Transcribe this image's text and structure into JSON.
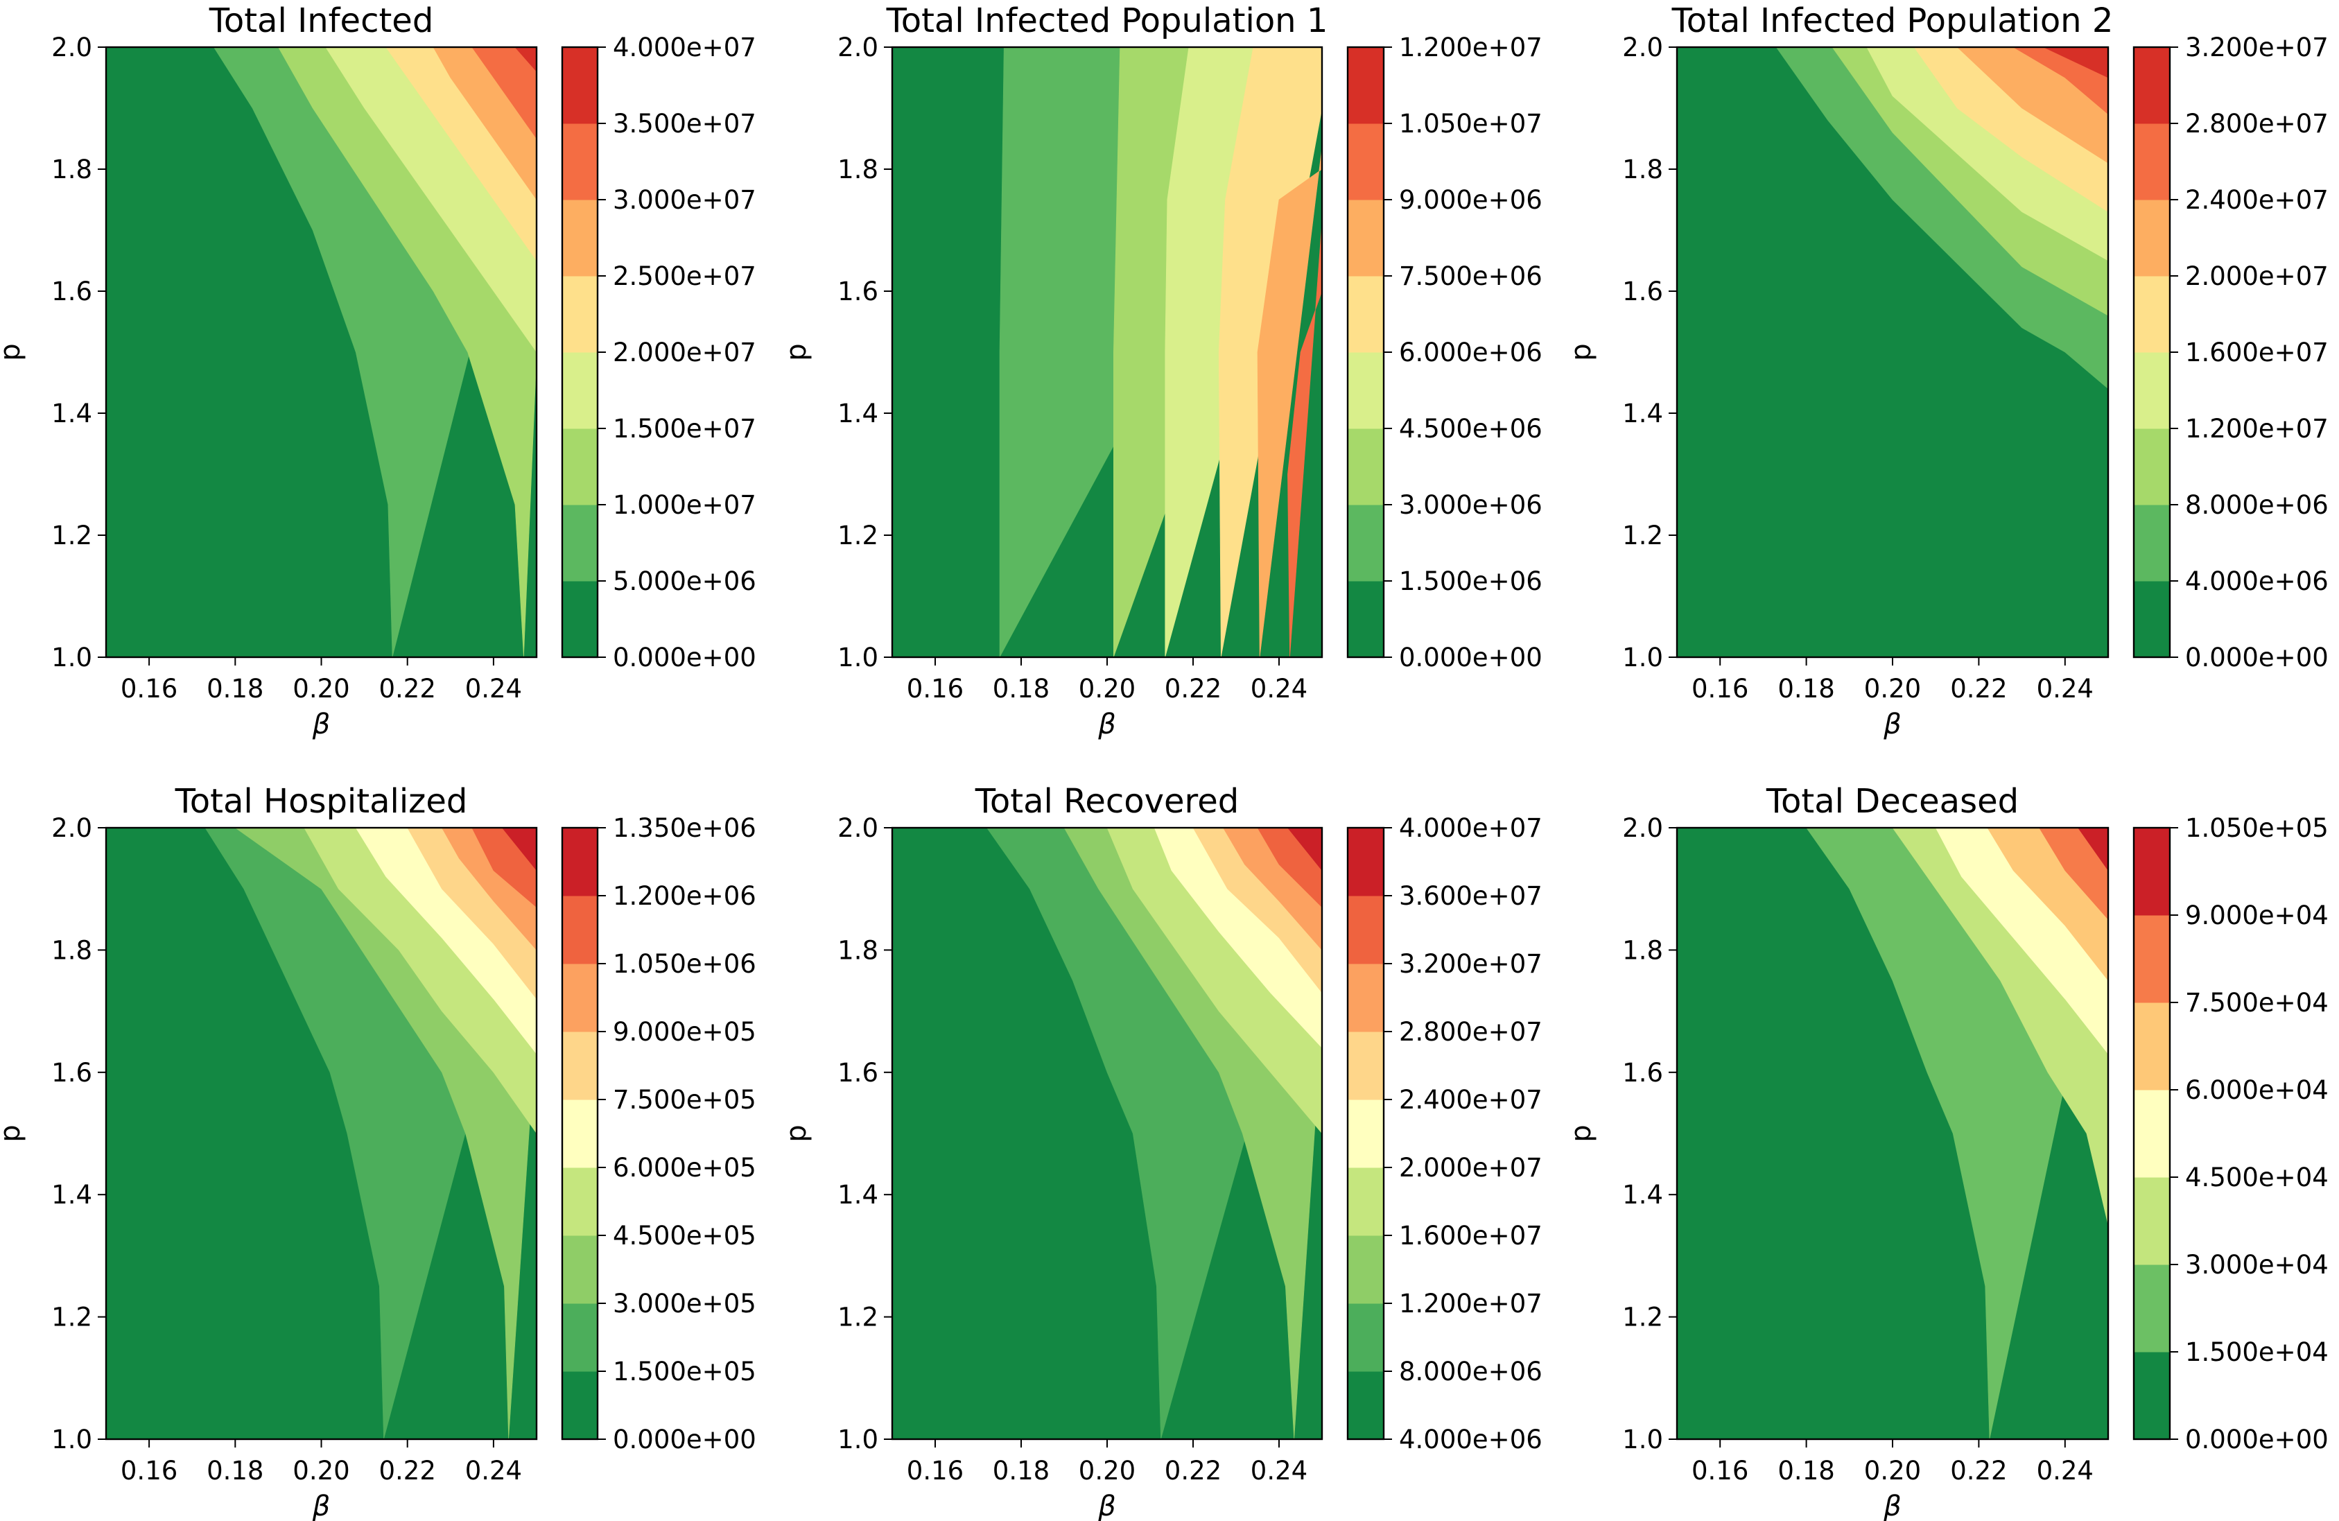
{
  "figure": {
    "background": "#ffffff"
  },
  "chart_data": [
    {
      "type": "contour",
      "title": "Total Infected",
      "xlabel": "β",
      "ylabel": "p",
      "xlim": [
        0.15,
        0.25
      ],
      "ylim": [
        1.0,
        2.0
      ],
      "xticks": [
        "0.16",
        "0.18",
        "0.20",
        "0.22",
        "0.24"
      ],
      "yticks": [
        "1.0",
        "1.2",
        "1.4",
        "1.6",
        "1.8",
        "2.0"
      ],
      "colorbar": {
        "levels": [
          0,
          5000000,
          10000000,
          15000000,
          20000000,
          25000000,
          30000000,
          35000000,
          40000000
        ],
        "tick_labels": [
          "0.000e+00",
          "5.000e+06",
          "1.000e+07",
          "1.500e+07",
          "2.000e+07",
          "2.500e+07",
          "3.000e+07",
          "3.500e+07",
          "4.000e+07"
        ],
        "colors": [
          "#138843",
          "#5cb860",
          "#a6d96a",
          "#d9ef8b",
          "#fee08b",
          "#fdae61",
          "#f46d43",
          "#d73027"
        ]
      },
      "boundaries": [
        [
          [
            0.2165,
            1.0
          ],
          [
            0.2155,
            1.25
          ],
          [
            0.208,
            1.5
          ],
          [
            0.198,
            1.7
          ],
          [
            0.184,
            1.9
          ],
          [
            0.175,
            2.0
          ]
        ],
        [
          [
            0.247,
            1.0
          ],
          [
            0.245,
            1.25
          ],
          [
            0.234,
            1.5
          ],
          [
            0.226,
            1.6
          ],
          [
            0.212,
            1.75
          ],
          [
            0.198,
            1.9
          ],
          [
            0.19,
            2.0
          ]
        ],
        [
          [
            0.25,
            1.5
          ],
          [
            0.24,
            1.6
          ],
          [
            0.23,
            1.7
          ],
          [
            0.22,
            1.8
          ],
          [
            0.21,
            1.9
          ],
          [
            0.201,
            2.0
          ]
        ],
        [
          [
            0.25,
            1.65
          ],
          [
            0.24,
            1.75
          ],
          [
            0.23,
            1.85
          ],
          [
            0.22,
            1.95
          ],
          [
            0.215,
            2.0
          ]
        ],
        [
          [
            0.25,
            1.75
          ],
          [
            0.24,
            1.85
          ],
          [
            0.23,
            1.95
          ],
          [
            0.226,
            2.0
          ]
        ],
        [
          [
            0.25,
            1.85
          ],
          [
            0.245,
            1.9
          ],
          [
            0.24,
            1.95
          ],
          [
            0.235,
            2.0
          ]
        ],
        [
          [
            0.25,
            1.96
          ],
          [
            0.245,
            2.0
          ]
        ]
      ]
    },
    {
      "type": "contour",
      "title": "Total Infected Population 1",
      "xlabel": "β",
      "ylabel": "p",
      "xlim": [
        0.15,
        0.25
      ],
      "ylim": [
        1.0,
        2.0
      ],
      "xticks": [
        "0.16",
        "0.18",
        "0.20",
        "0.22",
        "0.24"
      ],
      "yticks": [
        "1.0",
        "1.2",
        "1.4",
        "1.6",
        "1.8",
        "2.0"
      ],
      "colorbar": {
        "levels": [
          0,
          1500000,
          3000000,
          4500000,
          6000000,
          7500000,
          9000000,
          10500000,
          12000000
        ],
        "tick_labels": [
          "0.000e+00",
          "1.500e+06",
          "3.000e+06",
          "4.500e+06",
          "6.000e+06",
          "7.500e+06",
          "9.000e+06",
          "1.050e+07",
          "1.200e+07"
        ],
        "colors": [
          "#138843",
          "#5cb860",
          "#a6d96a",
          "#d9ef8b",
          "#fee08b",
          "#fdae61",
          "#f46d43",
          "#d73027"
        ]
      },
      "boundaries": [
        [
          [
            0.175,
            1.0
          ],
          [
            0.175,
            1.5
          ],
          [
            0.176,
            2.0
          ]
        ],
        [
          [
            0.2015,
            1.0
          ],
          [
            0.2015,
            1.5
          ],
          [
            0.203,
            2.0
          ]
        ],
        [
          [
            0.2135,
            1.0
          ],
          [
            0.2135,
            1.5
          ],
          [
            0.214,
            1.75
          ],
          [
            0.219,
            2.0
          ]
        ],
        [
          [
            0.2265,
            1.0
          ],
          [
            0.226,
            1.5
          ],
          [
            0.2275,
            1.75
          ],
          [
            0.234,
            2.0
          ]
        ],
        [
          [
            0.2355,
            1.0
          ],
          [
            0.235,
            1.5
          ],
          [
            0.24,
            1.75
          ],
          [
            0.25,
            1.8
          ]
        ],
        [
          [
            0.2425,
            1.0
          ],
          [
            0.242,
            1.3
          ],
          [
            0.245,
            1.5
          ],
          [
            0.25,
            1.6
          ]
        ]
      ]
    },
    {
      "type": "contour",
      "title": "Total Infected Population 2",
      "xlabel": "β",
      "ylabel": "p",
      "xlim": [
        0.15,
        0.25
      ],
      "ylim": [
        1.0,
        2.0
      ],
      "xticks": [
        "0.16",
        "0.18",
        "0.20",
        "0.22",
        "0.24"
      ],
      "yticks": [
        "1.0",
        "1.2",
        "1.4",
        "1.6",
        "1.8",
        "2.0"
      ],
      "colorbar": {
        "levels": [
          0,
          4000000,
          8000000,
          12000000,
          16000000,
          20000000,
          24000000,
          28000000,
          32000000
        ],
        "tick_labels": [
          "0.000e+00",
          "4.000e+06",
          "8.000e+06",
          "1.200e+07",
          "1.600e+07",
          "2.000e+07",
          "2.400e+07",
          "2.800e+07",
          "3.200e+07"
        ],
        "colors": [
          "#138843",
          "#5cb860",
          "#a6d96a",
          "#d9ef8b",
          "#fee08b",
          "#fdae61",
          "#f46d43",
          "#d73027"
        ]
      },
      "boundaries": [
        [
          [
            0.25,
            1.44
          ],
          [
            0.24,
            1.5
          ],
          [
            0.23,
            1.54
          ],
          [
            0.2,
            1.75
          ],
          [
            0.185,
            1.88
          ],
          [
            0.173,
            2.0
          ]
        ],
        [
          [
            0.25,
            1.56
          ],
          [
            0.23,
            1.64
          ],
          [
            0.2,
            1.86
          ],
          [
            0.186,
            2.0
          ]
        ],
        [
          [
            0.25,
            1.65
          ],
          [
            0.23,
            1.73
          ],
          [
            0.2,
            1.92
          ],
          [
            0.194,
            2.0
          ]
        ],
        [
          [
            0.25,
            1.73
          ],
          [
            0.23,
            1.82
          ],
          [
            0.215,
            1.9
          ],
          [
            0.205,
            2.0
          ]
        ],
        [
          [
            0.25,
            1.81
          ],
          [
            0.23,
            1.9
          ],
          [
            0.215,
            2.0
          ]
        ],
        [
          [
            0.25,
            1.89
          ],
          [
            0.24,
            1.95
          ],
          [
            0.228,
            2.0
          ]
        ],
        [
          [
            0.25,
            1.95
          ],
          [
            0.235,
            2.0
          ]
        ]
      ]
    },
    {
      "type": "contour",
      "title": "Total Hospitalized",
      "xlabel": "β",
      "ylabel": "p",
      "xlim": [
        0.15,
        0.25
      ],
      "ylim": [
        1.0,
        2.0
      ],
      "xticks": [
        "0.16",
        "0.18",
        "0.20",
        "0.22",
        "0.24"
      ],
      "yticks": [
        "1.0",
        "1.2",
        "1.4",
        "1.6",
        "1.8",
        "2.0"
      ],
      "colorbar": {
        "levels": [
          0,
          150000,
          300000,
          450000,
          600000,
          750000,
          900000,
          1050000,
          1200000,
          1350000
        ],
        "tick_labels": [
          "0.000e+00",
          "1.500e+05",
          "3.000e+05",
          "4.500e+05",
          "6.000e+05",
          "7.500e+05",
          "9.000e+05",
          "1.050e+06",
          "1.200e+06",
          "1.350e+06"
        ],
        "colors": [
          "#138843",
          "#4cae5b",
          "#8fcd67",
          "#c5e67e",
          "#ffffbf",
          "#fed68a",
          "#fca160",
          "#ef633f",
          "#cb2027"
        ]
      },
      "boundaries": [
        [
          [
            0.2145,
            1.0
          ],
          [
            0.2135,
            1.25
          ],
          [
            0.206,
            1.5
          ],
          [
            0.202,
            1.6
          ],
          [
            0.192,
            1.75
          ],
          [
            0.182,
            1.9
          ],
          [
            0.173,
            2.0
          ]
        ],
        [
          [
            0.2435,
            1.0
          ],
          [
            0.2425,
            1.25
          ],
          [
            0.2335,
            1.5
          ],
          [
            0.228,
            1.6
          ],
          [
            0.214,
            1.75
          ],
          [
            0.2,
            1.9
          ],
          [
            0.18,
            2.0
          ]
        ],
        [
          [
            0.25,
            1.5
          ],
          [
            0.24,
            1.6
          ],
          [
            0.228,
            1.7
          ],
          [
            0.218,
            1.8
          ],
          [
            0.204,
            1.9
          ],
          [
            0.196,
            2.0
          ]
        ],
        [
          [
            0.25,
            1.63
          ],
          [
            0.24,
            1.72
          ],
          [
            0.228,
            1.82
          ],
          [
            0.215,
            1.92
          ],
          [
            0.208,
            2.0
          ]
        ],
        [
          [
            0.25,
            1.72
          ],
          [
            0.24,
            1.81
          ],
          [
            0.228,
            1.9
          ],
          [
            0.22,
            2.0
          ]
        ],
        [
          [
            0.25,
            1.8
          ],
          [
            0.24,
            1.88
          ],
          [
            0.232,
            1.95
          ],
          [
            0.228,
            2.0
          ]
        ],
        [
          [
            0.25,
            1.87
          ],
          [
            0.24,
            1.93
          ],
          [
            0.235,
            2.0
          ]
        ],
        [
          [
            0.25,
            1.93
          ],
          [
            0.242,
            2.0
          ]
        ]
      ]
    },
    {
      "type": "contour",
      "title": "Total Recovered",
      "xlabel": "β",
      "ylabel": "p",
      "xlim": [
        0.15,
        0.25
      ],
      "ylim": [
        1.0,
        2.0
      ],
      "xticks": [
        "0.16",
        "0.18",
        "0.20",
        "0.22",
        "0.24"
      ],
      "yticks": [
        "1.0",
        "1.2",
        "1.4",
        "1.6",
        "1.8",
        "2.0"
      ],
      "colorbar": {
        "levels": [
          4000000,
          8000000,
          12000000,
          16000000,
          20000000,
          24000000,
          28000000,
          32000000,
          36000000,
          40000000
        ],
        "tick_labels": [
          "4.000e+06",
          "8.000e+06",
          "1.200e+07",
          "1.600e+07",
          "2.000e+07",
          "2.400e+07",
          "2.800e+07",
          "3.200e+07",
          "3.600e+07",
          "4.000e+07"
        ],
        "colors": [
          "#138843",
          "#4cae5b",
          "#8fcd67",
          "#c5e67e",
          "#ffffbf",
          "#fed68a",
          "#fca160",
          "#ef633f",
          "#cb2027"
        ]
      },
      "boundaries": [
        [
          [
            0.2125,
            1.0
          ],
          [
            0.2115,
            1.25
          ],
          [
            0.206,
            1.5
          ],
          [
            0.2,
            1.6
          ],
          [
            0.192,
            1.75
          ],
          [
            0.182,
            1.9
          ],
          [
            0.172,
            2.0
          ]
        ],
        [
          [
            0.2435,
            1.0
          ],
          [
            0.2415,
            1.25
          ],
          [
            0.2315,
            1.5
          ],
          [
            0.226,
            1.6
          ],
          [
            0.212,
            1.75
          ],
          [
            0.198,
            1.9
          ],
          [
            0.19,
            2.0
          ]
        ],
        [
          [
            0.25,
            1.5
          ],
          [
            0.238,
            1.6
          ],
          [
            0.226,
            1.7
          ],
          [
            0.216,
            1.8
          ],
          [
            0.206,
            1.9
          ],
          [
            0.2,
            2.0
          ]
        ],
        [
          [
            0.25,
            1.64
          ],
          [
            0.238,
            1.73
          ],
          [
            0.226,
            1.83
          ],
          [
            0.215,
            1.93
          ],
          [
            0.211,
            2.0
          ]
        ],
        [
          [
            0.25,
            1.73
          ],
          [
            0.24,
            1.82
          ],
          [
            0.228,
            1.9
          ],
          [
            0.22,
            2.0
          ]
        ],
        [
          [
            0.25,
            1.8
          ],
          [
            0.24,
            1.88
          ],
          [
            0.232,
            1.94
          ],
          [
            0.227,
            2.0
          ]
        ],
        [
          [
            0.25,
            1.87
          ],
          [
            0.24,
            1.94
          ],
          [
            0.235,
            2.0
          ]
        ],
        [
          [
            0.25,
            1.93
          ],
          [
            0.242,
            2.0
          ]
        ]
      ]
    },
    {
      "type": "contour",
      "title": "Total Deceased",
      "xlabel": "β",
      "ylabel": "p",
      "xlim": [
        0.15,
        0.25
      ],
      "ylim": [
        1.0,
        2.0
      ],
      "xticks": [
        "0.16",
        "0.18",
        "0.20",
        "0.22",
        "0.24"
      ],
      "yticks": [
        "1.0",
        "1.2",
        "1.4",
        "1.6",
        "1.8",
        "2.0"
      ],
      "colorbar": {
        "levels": [
          0,
          15000,
          30000,
          45000,
          60000,
          75000,
          90000,
          105000
        ],
        "tick_labels": [
          "0.000e+00",
          "1.500e+04",
          "3.000e+04",
          "4.500e+04",
          "6.000e+04",
          "7.500e+04",
          "9.000e+04",
          "1.050e+05"
        ],
        "colors": [
          "#138843",
          "#6cc064",
          "#c3e57d",
          "#ffffbf",
          "#fec877",
          "#f67b4a",
          "#cb2027"
        ]
      },
      "boundaries": [
        [
          [
            0.2225,
            1.0
          ],
          [
            0.2215,
            1.25
          ],
          [
            0.214,
            1.5
          ],
          [
            0.208,
            1.6
          ],
          [
            0.2,
            1.75
          ],
          [
            0.19,
            1.9
          ],
          [
            0.18,
            2.0
          ]
        ],
        [
          [
            0.25,
            1.35
          ],
          [
            0.245,
            1.5
          ],
          [
            0.236,
            1.6
          ],
          [
            0.225,
            1.75
          ],
          [
            0.21,
            1.9
          ],
          [
            0.2,
            2.0
          ]
        ],
        [
          [
            0.25,
            1.63
          ],
          [
            0.24,
            1.72
          ],
          [
            0.228,
            1.82
          ],
          [
            0.216,
            1.92
          ],
          [
            0.21,
            2.0
          ]
        ],
        [
          [
            0.25,
            1.75
          ],
          [
            0.24,
            1.84
          ],
          [
            0.228,
            1.93
          ],
          [
            0.222,
            2.0
          ]
        ],
        [
          [
            0.25,
            1.85
          ],
          [
            0.24,
            1.93
          ],
          [
            0.234,
            2.0
          ]
        ],
        [
          [
            0.25,
            1.93
          ],
          [
            0.243,
            2.0
          ]
        ]
      ]
    }
  ]
}
